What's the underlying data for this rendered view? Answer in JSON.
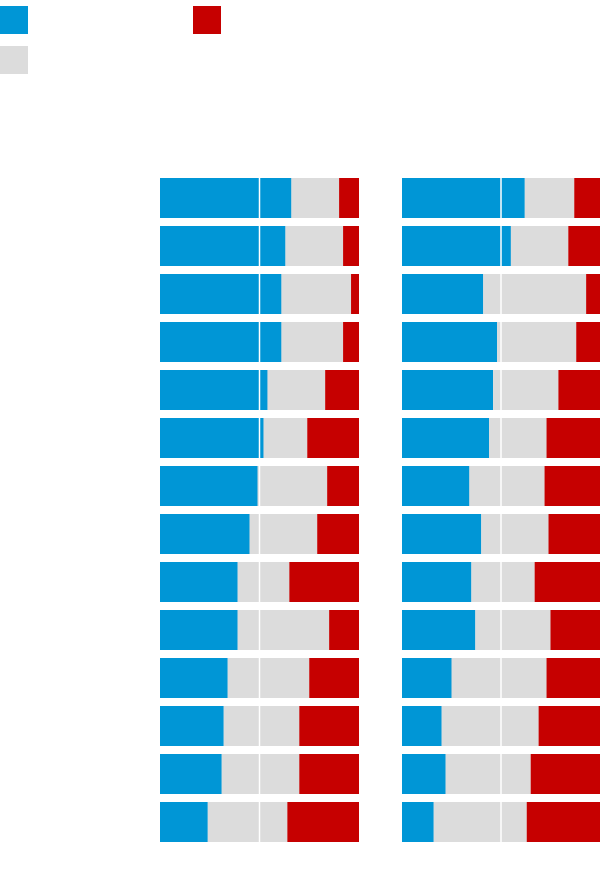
{
  "legend": {
    "items": [
      {
        "color": "#0096d6"
      },
      {
        "color": "#c60000"
      },
      {
        "color": "#dcdcdc"
      }
    ]
  },
  "chart_data": {
    "type": "bar",
    "stacked": true,
    "orientation": "horizontal",
    "scale": "percent",
    "xlim": [
      0,
      100
    ],
    "grid": true,
    "colors": {
      "blue": "#0096d6",
      "gray": "#dcdcdc",
      "red": "#c60000"
    },
    "panels": [
      {
        "rows": [
          {
            "blue": 66,
            "gray": 24,
            "red": 10
          },
          {
            "blue": 63,
            "gray": 29,
            "red": 8
          },
          {
            "blue": 61,
            "gray": 35,
            "red": 4
          },
          {
            "blue": 61,
            "gray": 31,
            "red": 8
          },
          {
            "blue": 54,
            "gray": 29,
            "red": 17
          },
          {
            "blue": 52,
            "gray": 22,
            "red": 26
          },
          {
            "blue": 49,
            "gray": 35,
            "red": 16
          },
          {
            "blue": 45,
            "gray": 34,
            "red": 21
          },
          {
            "blue": 39,
            "gray": 26,
            "red": 35
          },
          {
            "blue": 39,
            "gray": 46,
            "red": 15
          },
          {
            "blue": 34,
            "gray": 41,
            "red": 25
          },
          {
            "blue": 32,
            "gray": 38,
            "red": 30
          },
          {
            "blue": 31,
            "gray": 39,
            "red": 30
          },
          {
            "blue": 24,
            "gray": 40,
            "red": 36
          }
        ]
      },
      {
        "rows": [
          {
            "blue": 62,
            "gray": 25,
            "red": 13
          },
          {
            "blue": 55,
            "gray": 29,
            "red": 16
          },
          {
            "blue": 41,
            "gray": 52,
            "red": 7
          },
          {
            "blue": 48,
            "gray": 40,
            "red": 12
          },
          {
            "blue": 46,
            "gray": 33,
            "red": 21
          },
          {
            "blue": 44,
            "gray": 29,
            "red": 27
          },
          {
            "blue": 34,
            "gray": 38,
            "red": 28
          },
          {
            "blue": 40,
            "gray": 34,
            "red": 26
          },
          {
            "blue": 35,
            "gray": 32,
            "red": 33
          },
          {
            "blue": 37,
            "gray": 38,
            "red": 25
          },
          {
            "blue": 25,
            "gray": 48,
            "red": 27
          },
          {
            "blue": 20,
            "gray": 49,
            "red": 31
          },
          {
            "blue": 22,
            "gray": 43,
            "red": 35
          },
          {
            "blue": 16,
            "gray": 47,
            "red": 37
          }
        ]
      }
    ]
  }
}
